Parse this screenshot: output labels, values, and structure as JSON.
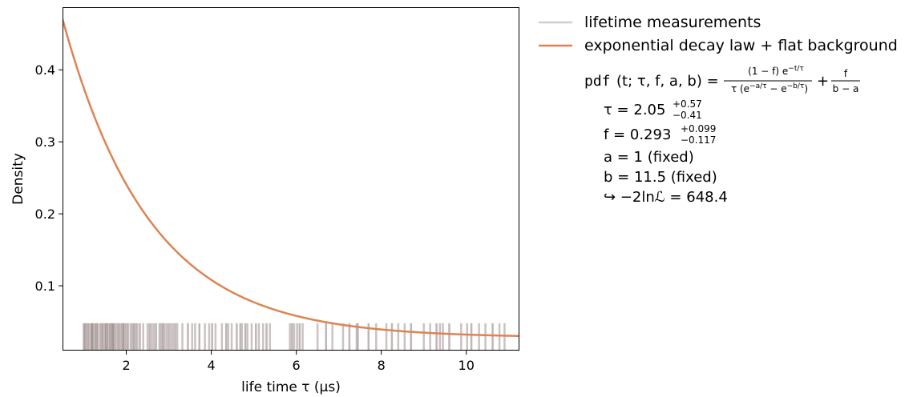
{
  "chart_data": {
    "type": "line",
    "xlabel": "life time τ (µs)",
    "ylabel": "Density",
    "xlim": [
      0.5,
      11.25
    ],
    "ylim": [
      0.01,
      0.487
    ],
    "xticks": [
      2,
      4,
      6,
      8,
      10
    ],
    "xtick_labels": [
      "2",
      "4",
      "6",
      "8",
      "10"
    ],
    "yticks": [
      0.1,
      0.2,
      0.3,
      0.4
    ],
    "ytick_labels": [
      "0.1",
      "0.2",
      "0.3",
      "0.4"
    ],
    "grid": false,
    "legend_placement": "outside upper right",
    "series": [
      {
        "name": "lifetime measurements",
        "kind": "rug",
        "color": "#a9a9a9",
        "rug_height": 0.048,
        "values": [
          1.0,
          1.03,
          1.06,
          1.1,
          1.14,
          1.18,
          1.2,
          1.23,
          1.27,
          1.3,
          1.33,
          1.38,
          1.42,
          1.45,
          1.49,
          1.52,
          1.55,
          1.58,
          1.62,
          1.65,
          1.68,
          1.7,
          1.74,
          1.78,
          1.82,
          1.86,
          1.9,
          1.93,
          1.96,
          2.0,
          2.04,
          2.1,
          2.14,
          2.18,
          2.22,
          2.26,
          2.32,
          2.4,
          2.5,
          2.55,
          2.6,
          2.65,
          2.7,
          2.78,
          2.82,
          2.86,
          2.9,
          2.95,
          3.0,
          3.05,
          3.1,
          3.15,
          3.2,
          3.32,
          3.45,
          3.55,
          3.62,
          3.72,
          3.85,
          3.95,
          4.02,
          4.1,
          4.25,
          4.35,
          4.4,
          4.48,
          4.6,
          4.68,
          4.72,
          4.8,
          4.85,
          4.95,
          5.05,
          5.12,
          5.22,
          5.3,
          5.38,
          5.85,
          5.9,
          5.95,
          6.02,
          6.08,
          6.15,
          6.5,
          6.7,
          6.85,
          7.1,
          7.25,
          7.42,
          7.45,
          7.7,
          7.88,
          8.12,
          8.25,
          8.4,
          8.55,
          8.7,
          9.0,
          9.15,
          9.3,
          9.38,
          9.45,
          9.6,
          9.88,
          10.02,
          10.12,
          10.3,
          10.45,
          10.62,
          10.78,
          10.9
        ]
      },
      {
        "name": "exponential decay law + flat background",
        "kind": "curve",
        "color": "#dd8452",
        "params": {
          "tau": 2.05,
          "f": 0.293,
          "a": 1,
          "b": 11.5
        }
      }
    ]
  },
  "annotation": {
    "formula_pdf_label": "pdf",
    "formula_args": "(t; τ, f, a, b) =",
    "formula_frac1_num": "(1 − f) e",
    "formula_frac1_num_exp": "−t/τ",
    "formula_frac1_den": "τ (e",
    "formula_frac1_den_exp1": "−a/τ",
    "formula_frac1_den_mid": " − e",
    "formula_frac1_den_exp2": "−b/τ",
    "formula_frac1_den_end": ")",
    "formula_plus": "+",
    "formula_frac2_num": "f",
    "formula_frac2_den": "b − a",
    "tau_label": "τ = 2.05",
    "tau_up": "+0.57",
    "tau_down": "−0.41",
    "f_label": "f = 0.293",
    "f_up": "+0.099",
    "f_down": "−0.117",
    "a_line": "a = 1 (fixed)",
    "b_line": "b = 11.5 (fixed)",
    "nll_line": "↪ −2lnℒ = 648.4"
  }
}
